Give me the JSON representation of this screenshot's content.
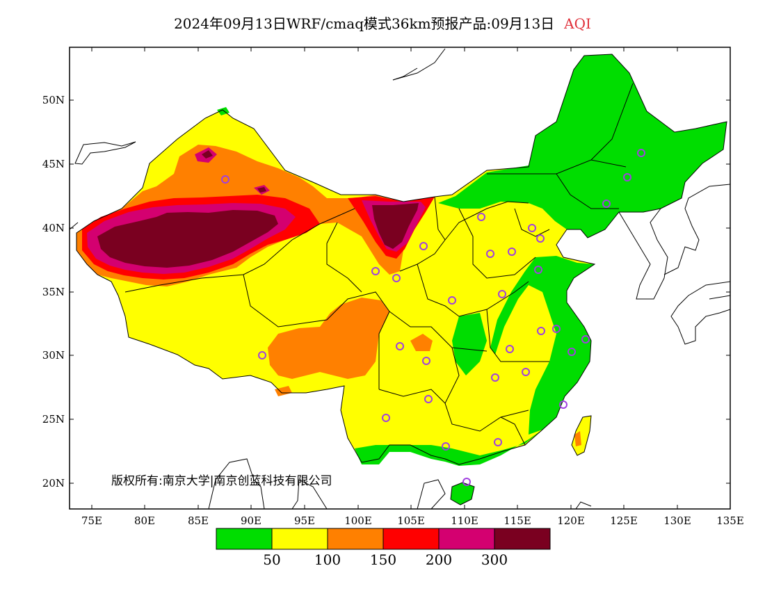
{
  "title": {
    "main": "2024年09月13日WRF/cmaq模式36km预报产品:09月13日",
    "variable": "AQI",
    "variable_color": "#e0303a"
  },
  "axes": {
    "y_ticks": [
      "50N",
      "45N",
      "40N",
      "35N",
      "30N",
      "25N",
      "20N"
    ],
    "x_ticks": [
      "75E",
      "80E",
      "85E",
      "90E",
      "95E",
      "100E",
      "105E",
      "110E",
      "115E",
      "120E",
      "125E",
      "130E",
      "135E"
    ]
  },
  "copyright": "版权所有:南京大学|南京创蓝科技有限公司",
  "colorbar": {
    "colors": [
      "#00dd00",
      "#ffff00",
      "#ff8000",
      "#ff0000",
      "#d40070",
      "#7a0020"
    ],
    "labels": [
      "50",
      "100",
      "150",
      "200",
      "300"
    ]
  },
  "colors": {
    "good": "#00dd00",
    "moderate": "#ffff00",
    "usg": "#ff8000",
    "unhealthy": "#ff0000",
    "very_unhealthy": "#d40070",
    "hazardous": "#7a0020",
    "station_ring": "#a040e0"
  }
}
